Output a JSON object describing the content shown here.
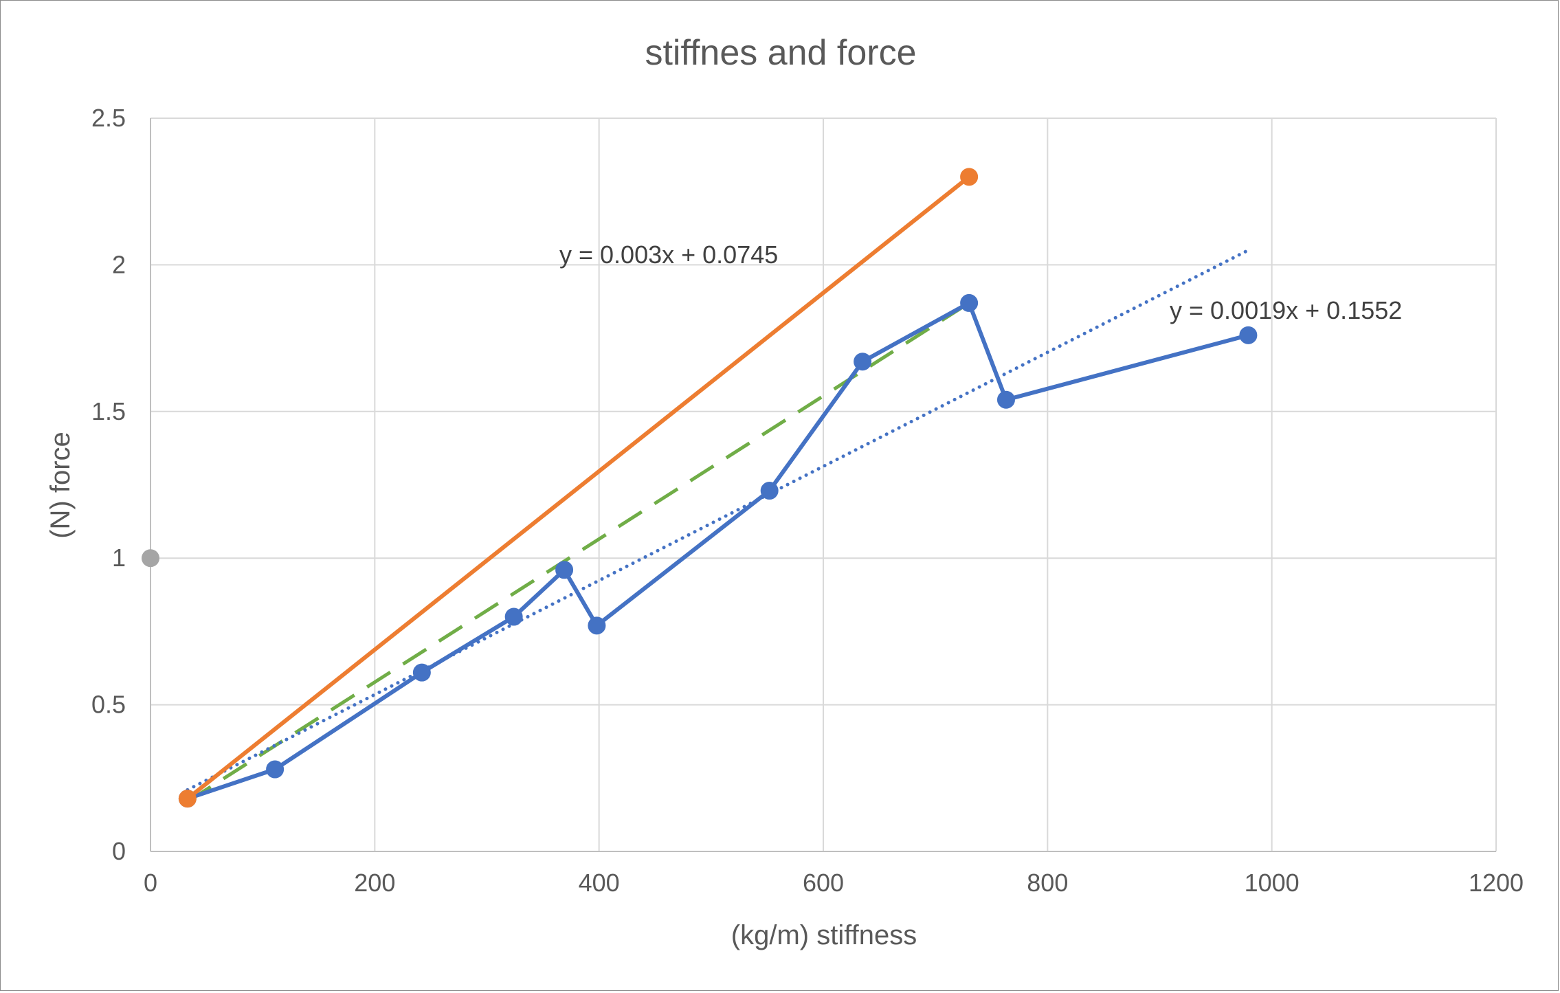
{
  "chart_data": {
    "type": "scatter",
    "title": "stiffnes and force",
    "xlabel": "(kg/m) stiffness",
    "ylabel": "(N) force",
    "xlim": [
      0,
      1200
    ],
    "ylim": [
      0,
      2.5
    ],
    "xticks": [
      "0",
      "200",
      "400",
      "600",
      "800",
      "1000",
      "1200"
    ],
    "yticks": [
      "0",
      "0.5",
      "1",
      "1.5",
      "2",
      "2.5"
    ],
    "grid": true,
    "legend": "none",
    "series": [
      {
        "color": "#4472C4",
        "style": "solid-with-markers",
        "x": [
          33,
          111,
          242,
          324,
          369,
          398,
          552,
          635,
          730,
          763,
          979
        ],
        "y": [
          0.18,
          0.28,
          0.61,
          0.8,
          0.96,
          0.77,
          1.23,
          1.67,
          1.87,
          1.54,
          1.76
        ]
      },
      {
        "color": "#ED7D31",
        "style": "solid-with-markers",
        "x": [
          33,
          730
        ],
        "y": [
          0.18,
          2.3
        ]
      },
      {
        "color": "#A5A5A5",
        "style": "markers",
        "x": [
          0
        ],
        "y": [
          1.0
        ]
      }
    ],
    "trendlines": [
      {
        "color": "#70AD47",
        "style": "dashed",
        "x": [
          33,
          730
        ],
        "y": [
          0.17,
          1.87
        ]
      },
      {
        "color": "#4472C4",
        "style": "dotted",
        "x": [
          33,
          979
        ],
        "y": [
          0.21,
          2.05
        ]
      }
    ],
    "annotations": [
      "y = 0.003x + 0.0745",
      "y = 0.0019x + 0.1552"
    ]
  }
}
